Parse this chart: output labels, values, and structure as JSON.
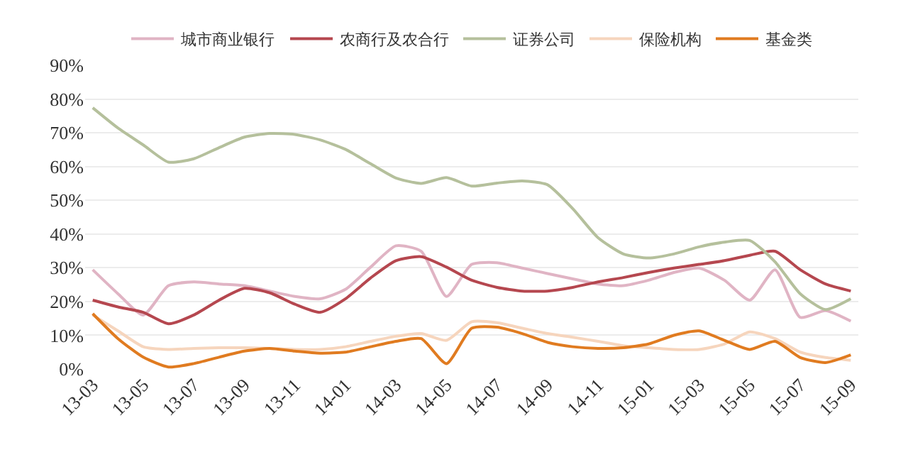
{
  "chart_data": {
    "type": "line",
    "categories": [
      "13-03",
      null,
      "13-05",
      null,
      "13-07",
      null,
      "13-09",
      null,
      "13-11",
      null,
      "14-01",
      null,
      "14-03",
      null,
      "14-05",
      null,
      "14-07",
      null,
      "14-09",
      null,
      "14-11",
      null,
      "15-01",
      null,
      "15-03",
      null,
      "15-05",
      null,
      "15-07",
      null,
      "15-09"
    ],
    "series": [
      {
        "name": "城市商业银行",
        "color": "#e0b4c4",
        "values": [
          29.4,
          22.3,
          16,
          24.7,
          25.8,
          25.2,
          24.7,
          23.1,
          21.5,
          20.8,
          23.6,
          30.2,
          36.5,
          34.9,
          21.5,
          31,
          31.5,
          29.9,
          28.3,
          26.7,
          25.2,
          24.7,
          26.3,
          28.6,
          29.9,
          26.3,
          20.4,
          29.4,
          15.3,
          17.3,
          14.2
        ]
      },
      {
        "name": "农商行及农合行",
        "color": "#b5474f",
        "values": [
          20.4,
          18.4,
          16.8,
          13.4,
          16,
          20.4,
          23.9,
          22.6,
          19.2,
          16.8,
          20.8,
          27,
          32.1,
          33.3,
          30.2,
          26.3,
          24.2,
          23.1,
          23.1,
          24.2,
          25.8,
          27.1,
          28.6,
          29.9,
          31,
          32.1,
          33.7,
          34.9,
          29.4,
          25.2,
          23.1
        ]
      },
      {
        "name": "证券公司",
        "color": "#b5c09c",
        "values": [
          77.4,
          71.4,
          66.4,
          61.3,
          62.3,
          65.6,
          68.7,
          69.8,
          69.5,
          67.9,
          65.1,
          60.8,
          56.6,
          55,
          56.7,
          54.2,
          55.1,
          55.7,
          54.6,
          47.5,
          38.9,
          34.1,
          32.9,
          34.1,
          36.2,
          37.6,
          38.1,
          31.8,
          22.3,
          17.6,
          20.8
        ]
      },
      {
        "name": "保险机构",
        "color": "#f6d5bd",
        "values": [
          16,
          11.3,
          6.6,
          5.8,
          6.1,
          6.3,
          6.3,
          6.1,
          5.8,
          5.8,
          6.6,
          8.2,
          9.7,
          10.5,
          8.5,
          14,
          13.7,
          12.1,
          10.5,
          9.4,
          8.2,
          6.9,
          6.3,
          5.8,
          5.8,
          7.4,
          11,
          9,
          5,
          3.4,
          2.6
        ]
      },
      {
        "name": "基金类",
        "color": "#e07b20",
        "values": [
          16.4,
          9,
          3.5,
          0.6,
          1.6,
          3.5,
          5.3,
          6.1,
          5.3,
          4.7,
          5,
          6.6,
          8.2,
          9,
          1.6,
          12.1,
          12.4,
          10.5,
          7.9,
          6.6,
          6.1,
          6.3,
          7.4,
          10,
          11.3,
          8.5,
          5.8,
          8.2,
          3.4,
          1.9,
          4.2
        ]
      }
    ],
    "ylim": [
      0,
      90
    ],
    "yticks": [
      {
        "value": 0,
        "label": "0%"
      },
      {
        "value": 10,
        "label": "10%"
      },
      {
        "value": 20,
        "label": "20%"
      },
      {
        "value": 30,
        "label": "30%"
      },
      {
        "value": 40,
        "label": "40%"
      },
      {
        "value": 50,
        "label": "50%"
      },
      {
        "value": 60,
        "label": "60%"
      },
      {
        "value": 70,
        "label": "70%"
      },
      {
        "value": 80,
        "label": "80%"
      },
      {
        "value": 90,
        "label": "90%"
      }
    ],
    "grid": "y",
    "legend": "top",
    "marker": "none",
    "line_style": "solid"
  }
}
